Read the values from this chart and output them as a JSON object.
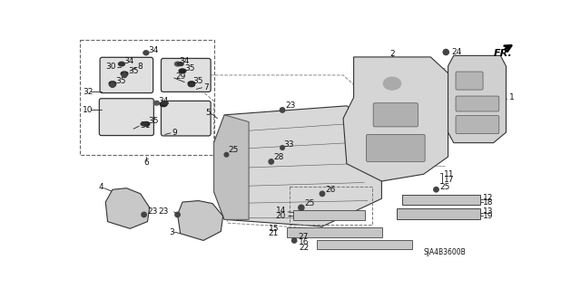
{
  "bg": "#ffffff",
  "lc": "#222222",
  "gray_fill": "#c8c8c8",
  "mat_fill": "#d0d0d0",
  "diagram_code": "SJA4B3600B",
  "fs": 6.5,
  "fs_small": 5.5
}
